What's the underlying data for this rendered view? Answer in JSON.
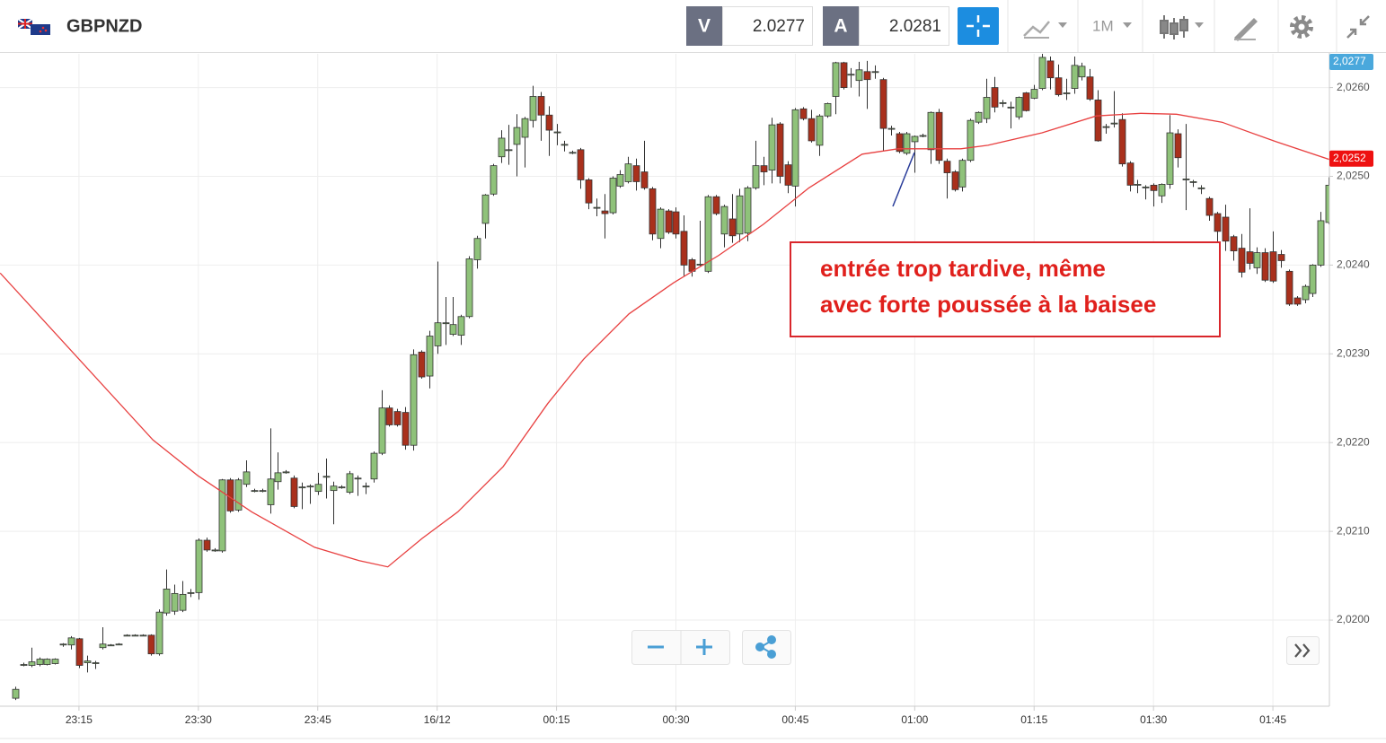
{
  "header": {
    "symbol": "GBPNZD",
    "sell_label": "V",
    "sell": "2.0277",
    "buy_label": "A",
    "buy": "2.0281",
    "timeframe": "1M"
  },
  "chart_data": {
    "type": "candlestick",
    "up_color": "#8fc27a",
    "down_color": "#a9301c",
    "xlim": [
      -1.92,
      165.1
    ],
    "xticks": [
      {
        "value": 8,
        "label": "23:15"
      },
      {
        "value": 23,
        "label": "23:30"
      },
      {
        "value": 38,
        "label": "23:45"
      },
      {
        "value": 53,
        "label": "16/12"
      },
      {
        "value": 68,
        "label": "00:15"
      },
      {
        "value": 83,
        "label": "00:30"
      },
      {
        "value": 98,
        "label": "00:45"
      },
      {
        "value": 113,
        "label": "01:00"
      },
      {
        "value": 128,
        "label": "01:15"
      },
      {
        "value": 143,
        "label": "01:30"
      },
      {
        "value": 158,
        "label": "01:45"
      }
    ],
    "ylim": [
      2.01903,
      2.02638
    ],
    "yticks": [
      {
        "value": 2.02,
        "label": "2,0200"
      },
      {
        "value": 2.021,
        "label": "2,0210"
      },
      {
        "value": 2.022,
        "label": "2,0220"
      },
      {
        "value": 2.023,
        "label": "2,0230"
      },
      {
        "value": 2.024,
        "label": "2,0240"
      },
      {
        "value": 2.025,
        "label": "2,0250"
      },
      {
        "value": 2.026,
        "label": "2,0260"
      }
    ],
    "grid": true,
    "price_tags": [
      {
        "value": 2.0277,
        "label": "2,0277",
        "color": "#4aa8dc"
      },
      {
        "value": 2.0252,
        "label": "2,0252",
        "color": "#ee1111"
      }
    ],
    "annotation": [
      "entrée trop tardive, même",
      "avec forte poussée à la baisee"
    ],
    "ma": {
      "color": "#e84040",
      "x": [
        -1.9,
        17.3,
        22.9,
        29.7,
        37.6,
        43.2,
        46.8,
        51.1,
        55.6,
        61.3,
        66.9,
        71.4,
        77.1,
        82.7,
        88.4,
        94.0,
        99.7,
        106.4,
        110.9,
        115.5,
        118.8,
        122.2,
        129.0,
        135.8,
        141.4,
        145.9,
        151.6,
        158.4,
        165.1
      ],
      "values": [
        2.02391,
        2.02203,
        2.02163,
        2.02122,
        2.02082,
        2.02067,
        2.0206,
        2.02092,
        2.02122,
        2.02173,
        2.02244,
        2.02294,
        2.02345,
        2.0238,
        2.02411,
        2.02446,
        2.02487,
        2.02525,
        2.02531,
        2.02531,
        2.02531,
        2.02535,
        2.02549,
        2.02568,
        2.02571,
        2.0257,
        2.02561,
        2.02539,
        2.02519
      ]
    },
    "candles": [
      [
        2.01912,
        2.01925,
        2.0191,
        2.01922
      ],
      [
        2.0195,
        2.01952,
        2.01948,
        2.0195
      ],
      [
        2.01949,
        2.01969,
        2.01947,
        2.01953
      ],
      [
        2.0195,
        2.01958,
        2.01948,
        2.01956
      ],
      [
        2.0195,
        2.01957,
        2.01949,
        2.01956
      ],
      [
        2.01951,
        2.01957,
        2.0195,
        2.01956
      ],
      [
        2.01972,
        2.01974,
        2.0197,
        2.01973
      ],
      [
        2.01972,
        2.01982,
        2.01967,
        2.0198
      ],
      [
        2.01979,
        2.0198,
        2.01946,
        2.01949
      ],
      [
        2.01952,
        2.0196,
        2.01941,
        2.01954
      ],
      [
        2.01952,
        2.01954,
        2.01945,
        2.01952
      ],
      [
        2.01969,
        2.01992,
        2.01967,
        2.01973
      ],
      [
        2.01972,
        2.01973,
        2.01971,
        2.01972
      ],
      [
        2.01973,
        2.01974,
        2.01972,
        2.01973
      ],
      [
        2.01983,
        2.01984,
        2.01982,
        2.01983
      ],
      [
        2.01983,
        2.01984,
        2.01982,
        2.01983
      ],
      [
        2.01983,
        2.01984,
        2.01982,
        2.01983
      ],
      [
        2.01983,
        2.01984,
        2.0196,
        2.01962
      ],
      [
        2.01962,
        2.02012,
        2.0196,
        2.02009
      ],
      [
        2.02008,
        2.02057,
        2.02005,
        2.02035
      ],
      [
        2.0201,
        2.0204,
        2.02006,
        2.0203
      ],
      [
        2.02011,
        2.02044,
        2.02009,
        2.02029
      ],
      [
        2.02031,
        2.02035,
        2.02026,
        2.02031
      ],
      [
        2.02031,
        2.02092,
        2.02023,
        2.0209
      ],
      [
        2.0209,
        2.02093,
        2.02077,
        2.02079
      ],
      [
        2.02079,
        2.02081,
        2.02077,
        2.02079
      ],
      [
        2.02078,
        2.02159,
        2.02076,
        2.02158
      ],
      [
        2.02158,
        2.0216,
        2.02121,
        2.02123
      ],
      [
        2.02124,
        2.0216,
        2.02122,
        2.02158
      ],
      [
        2.02153,
        2.0218,
        2.0215,
        2.02167
      ],
      [
        2.02146,
        2.02148,
        2.02144,
        2.02146
      ],
      [
        2.02146,
        2.02148,
        2.02144,
        2.02146
      ],
      [
        2.0213,
        2.02216,
        2.0212,
        2.02159
      ],
      [
        2.02156,
        2.02189,
        2.02147,
        2.02166
      ],
      [
        2.02167,
        2.02169,
        2.02165,
        2.02167
      ],
      [
        2.0216,
        2.02163,
        2.02126,
        2.02128
      ],
      [
        2.0215,
        2.02155,
        2.02125,
        2.0215
      ],
      [
        2.02151,
        2.02153,
        2.02131,
        2.02151
      ],
      [
        2.02145,
        2.02166,
        2.02141,
        2.02153
      ],
      [
        2.02162,
        2.02182,
        2.02137,
        2.02162
      ],
      [
        2.02146,
        2.02156,
        2.02108,
        2.02151
      ],
      [
        2.0215,
        2.02152,
        2.02148,
        2.0215
      ],
      [
        2.02144,
        2.02168,
        2.02142,
        2.02165
      ],
      [
        2.0216,
        2.02163,
        2.0214,
        2.0216
      ],
      [
        2.02151,
        2.02155,
        2.02142,
        2.02151
      ],
      [
        2.02159,
        2.0219,
        2.02155,
        2.02188
      ],
      [
        2.02188,
        2.02259,
        2.02186,
        2.02239
      ],
      [
        2.02239,
        2.02242,
        2.02218,
        2.0222
      ],
      [
        2.02235,
        2.02238,
        2.02218,
        2.0222
      ],
      [
        2.02234,
        2.0224,
        2.02192,
        2.02197
      ],
      [
        2.02197,
        2.02305,
        2.02191,
        2.02299
      ],
      [
        2.02302,
        2.02304,
        2.02272,
        2.02274
      ],
      [
        2.02275,
        2.02326,
        2.02261,
        2.0232
      ],
      [
        2.02309,
        2.02404,
        2.023,
        2.02335
      ],
      [
        2.02335,
        2.02364,
        2.0231,
        2.02335
      ],
      [
        2.02322,
        2.02364,
        2.0232,
        2.02333
      ],
      [
        2.02321,
        2.02344,
        2.0231,
        2.02342
      ],
      [
        2.02342,
        2.0241,
        2.0234,
        2.02407
      ],
      [
        2.02406,
        2.02433,
        2.02396,
        2.0243
      ],
      [
        2.02447,
        2.0248,
        2.0243,
        2.02479
      ],
      [
        2.0248,
        2.02514,
        2.02478,
        2.02512
      ],
      [
        2.02522,
        2.02552,
        2.02515,
        2.02543
      ],
      [
        2.0253,
        2.02558,
        2.02513,
        2.0253
      ],
      [
        2.02536,
        2.0257,
        2.025,
        2.02555
      ],
      [
        2.02544,
        2.02567,
        2.0251,
        2.02565
      ],
      [
        2.02563,
        2.02602,
        2.02555,
        2.0259
      ],
      [
        2.0259,
        2.02595,
        2.0254,
        2.02569
      ],
      [
        2.02569,
        2.02579,
        2.02523,
        2.02552
      ],
      [
        2.0255,
        2.02559,
        2.02535,
        2.0255
      ],
      [
        2.02536,
        2.0254,
        2.02528,
        2.02536
      ],
      [
        2.02527,
        2.02529,
        2.02525,
        2.02527
      ],
      [
        2.0253,
        2.02532,
        2.02486,
        2.02496
      ],
      [
        2.02496,
        2.02498,
        2.02463,
        2.0247
      ],
      [
        2.02465,
        2.02475,
        2.02455,
        2.02465
      ],
      [
        2.02461,
        2.0248,
        2.0243,
        2.02458
      ],
      [
        2.02459,
        2.025,
        2.02457,
        2.02498
      ],
      [
        2.02489,
        2.02507,
        2.02487,
        2.02502
      ],
      [
        2.02494,
        2.02522,
        2.02492,
        2.02514
      ],
      [
        2.02512,
        2.0252,
        2.02484,
        2.02494
      ],
      [
        2.02505,
        2.0254,
        2.02485,
        2.02487
      ],
      [
        2.02486,
        2.02488,
        2.02428,
        2.02435
      ],
      [
        2.0243,
        2.02465,
        2.02419,
        2.02463
      ],
      [
        2.02461,
        2.02463,
        2.02435,
        2.02437
      ],
      [
        2.0246,
        2.02465,
        2.0243,
        2.02435
      ],
      [
        2.02438,
        2.02456,
        2.02387,
        2.024
      ],
      [
        2.02406,
        2.02408,
        2.02387,
        2.02393
      ],
      [
        2.02401,
        2.0245,
        2.02399,
        2.02401
      ],
      [
        2.02393,
        2.02479,
        2.02391,
        2.02477
      ],
      [
        2.02477,
        2.02479,
        2.02456,
        2.02458
      ],
      [
        2.02435,
        2.02468,
        2.0242,
        2.02466
      ],
      [
        2.02452,
        2.0248,
        2.02425,
        2.02433
      ],
      [
        2.02435,
        2.02486,
        2.02426,
        2.02478
      ],
      [
        2.02436,
        2.02489,
        2.02427,
        2.02487
      ],
      [
        2.02487,
        2.0254,
        2.02485,
        2.02512
      ],
      [
        2.02512,
        2.02522,
        2.0249,
        2.02505
      ],
      [
        2.02507,
        2.02566,
        2.02492,
        2.02558
      ],
      [
        2.02559,
        2.02561,
        2.02492,
        2.025
      ],
      [
        2.02513,
        2.02517,
        2.02481,
        2.0249
      ],
      [
        2.02489,
        2.02577,
        2.02466,
        2.02575
      ],
      [
        2.02576,
        2.02578,
        2.02563,
        2.02565
      ],
      [
        2.02565,
        2.02575,
        2.02538,
        2.0254
      ],
      [
        2.02535,
        2.0257,
        2.02523,
        2.02568
      ],
      [
        2.02568,
        2.02583,
        2.02566,
        2.02582
      ],
      [
        2.0259,
        2.02629,
        2.0257,
        2.02628
      ],
      [
        2.02628,
        2.02629,
        2.02598,
        2.026
      ],
      [
        2.02615,
        2.02622,
        2.026,
        2.02615
      ],
      [
        2.02608,
        2.02629,
        2.0259,
        2.0262
      ],
      [
        2.02618,
        2.0263,
        2.02576,
        2.02609
      ],
      [
        2.02618,
        2.02625,
        2.0261,
        2.02618
      ],
      [
        2.02609,
        2.02611,
        2.02529,
        2.02554
      ],
      [
        2.02554,
        2.02557,
        2.02546,
        2.02554
      ],
      [
        2.02548,
        2.0255,
        2.02526,
        2.02528
      ],
      [
        2.02526,
        2.0255,
        2.02524,
        2.02548
      ],
      [
        2.02539,
        2.02546,
        2.02504,
        2.02545
      ],
      [
        2.02546,
        2.02548,
        2.02544,
        2.02546
      ],
      [
        2.0253,
        2.02573,
        2.02514,
        2.02572
      ],
      [
        2.02572,
        2.02576,
        2.02514,
        2.02518
      ],
      [
        2.02517,
        2.0252,
        2.02475,
        2.02504
      ],
      [
        2.02505,
        2.02507,
        2.02483,
        2.02485
      ],
      [
        2.02488,
        2.0252,
        2.02483,
        2.02518
      ],
      [
        2.02518,
        2.02565,
        2.02516,
        2.02563
      ],
      [
        2.02561,
        2.02573,
        2.02559,
        2.02572
      ],
      [
        2.02565,
        2.0261,
        2.0256,
        2.02589
      ],
      [
        2.026,
        2.02612,
        2.02572,
        2.02578
      ],
      [
        2.02583,
        2.02586,
        2.02578,
        2.02583
      ],
      [
        2.02578,
        2.02584,
        2.02554,
        2.02578
      ],
      [
        2.02567,
        2.0259,
        2.02564,
        2.02589
      ],
      [
        2.02594,
        2.02595,
        2.02573,
        2.02574
      ],
      [
        2.02588,
        2.02603,
        2.02587,
        2.02598
      ],
      [
        2.02599,
        2.02638,
        2.02597,
        2.02634
      ],
      [
        2.0263,
        2.02635,
        2.02598,
        2.02611
      ],
      [
        2.02611,
        2.02626,
        2.0259,
        2.02592
      ],
      [
        2.02594,
        2.0261,
        2.02586,
        2.02594
      ],
      [
        2.02599,
        2.02635,
        2.02593,
        2.02625
      ],
      [
        2.02612,
        2.02628,
        2.02608,
        2.02624
      ],
      [
        2.02612,
        2.02621,
        2.02585,
        2.02587
      ],
      [
        2.02586,
        2.02597,
        2.02539,
        2.0254
      ],
      [
        2.02556,
        2.02559,
        2.02548,
        2.02556
      ],
      [
        2.0256,
        2.02596,
        2.02555,
        2.0256
      ],
      [
        2.02564,
        2.02571,
        2.02511,
        2.02514
      ],
      [
        2.02515,
        2.02517,
        2.02483,
        2.0249
      ],
      [
        2.02491,
        2.02496,
        2.02481,
        2.02491
      ],
      [
        2.02488,
        2.0249,
        2.02474,
        2.02488
      ],
      [
        2.0249,
        2.02492,
        2.02466,
        2.02484
      ],
      [
        2.02478,
        2.02492,
        2.0247,
        2.02491
      ],
      [
        2.02491,
        2.02569,
        2.02486,
        2.02549
      ],
      [
        2.02548,
        2.02553,
        2.0251,
        2.02521
      ],
      [
        2.02497,
        2.02559,
        2.02462,
        2.02497
      ],
      [
        2.02494,
        2.02496,
        2.02488,
        2.02494
      ],
      [
        2.02487,
        2.0249,
        2.0248,
        2.02487
      ],
      [
        2.02475,
        2.02477,
        2.0245,
        2.02456
      ],
      [
        2.02458,
        2.0246,
        2.02425,
        2.02438
      ],
      [
        2.02454,
        2.02468,
        2.02416,
        2.02427
      ],
      [
        2.02432,
        2.02434,
        2.02405,
        2.02416
      ],
      [
        2.02419,
        2.02435,
        2.02386,
        2.02392
      ],
      [
        2.02415,
        2.02464,
        2.02395,
        2.02402
      ],
      [
        2.02397,
        2.0242,
        2.0239,
        2.02414
      ],
      [
        2.02414,
        2.02419,
        2.02381,
        2.02383
      ],
      [
        2.02415,
        2.02438,
        2.0238,
        2.02382
      ],
      [
        2.02412,
        2.02417,
        2.02397,
        2.02405
      ],
      [
        2.02393,
        2.02395,
        2.02354,
        2.02356
      ],
      [
        2.02363,
        2.02365,
        2.02354,
        2.02356
      ],
      [
        2.02361,
        2.02378,
        2.02357,
        2.02376
      ],
      [
        2.02368,
        2.02401,
        2.02364,
        2.024
      ],
      [
        2.024,
        2.0246,
        2.02398,
        2.0245
      ],
      [
        2.02448,
        2.02499,
        2.02446,
        2.0249
      ]
    ]
  }
}
